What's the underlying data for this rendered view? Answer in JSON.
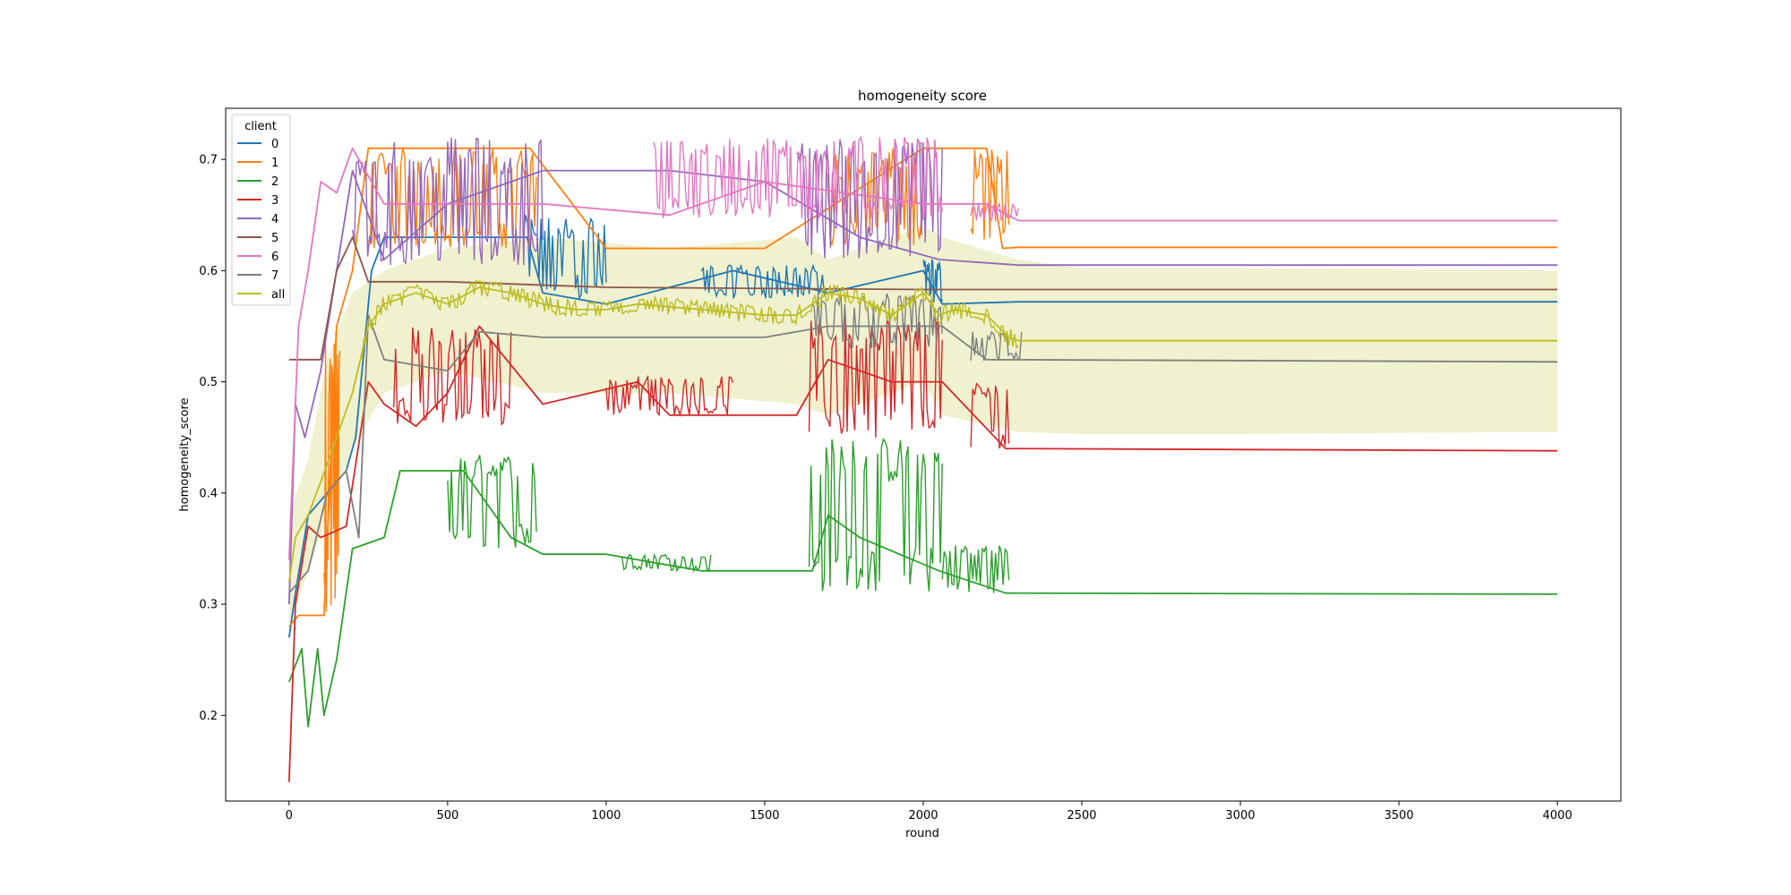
{
  "chart_data": {
    "type": "line",
    "title": "homogeneity score",
    "xlabel": "round",
    "ylabel": "homogeneity_score",
    "xlim": [
      -200,
      4200
    ],
    "ylim": [
      0.123,
      0.746
    ],
    "xticks": [
      0,
      500,
      1000,
      1500,
      2000,
      2500,
      3000,
      3500,
      4000
    ],
    "yticks": [
      0.2,
      0.3,
      0.4,
      0.5,
      0.6,
      0.7
    ],
    "legend": {
      "title": "client",
      "placement": "top-left"
    },
    "band": {
      "series": "all",
      "points": [
        [
          0,
          0.28,
          0.38
        ],
        [
          60,
          0.33,
          0.43
        ],
        [
          120,
          0.38,
          0.52
        ],
        [
          200,
          0.44,
          0.58
        ],
        [
          300,
          0.49,
          0.6
        ],
        [
          500,
          0.51,
          0.62
        ],
        [
          800,
          0.49,
          0.63
        ],
        [
          1200,
          0.49,
          0.62
        ],
        [
          1600,
          0.48,
          0.63
        ],
        [
          1700,
          0.47,
          0.61
        ],
        [
          2000,
          0.5,
          0.64
        ],
        [
          2060,
          0.47,
          0.63
        ],
        [
          2300,
          0.455,
          0.61
        ],
        [
          2500,
          0.453,
          0.602
        ],
        [
          3000,
          0.453,
          0.602
        ],
        [
          4000,
          0.455,
          0.6
        ]
      ]
    },
    "series": [
      {
        "name": "0",
        "color": "#1f77b4",
        "points": [
          [
            0,
            0.27
          ],
          [
            20,
            0.31
          ],
          [
            60,
            0.38
          ],
          [
            120,
            0.4
          ],
          [
            180,
            0.42
          ],
          [
            210,
            0.45
          ],
          [
            260,
            0.6
          ],
          [
            300,
            0.63
          ],
          [
            500,
            0.63
          ],
          [
            750,
            0.63
          ],
          [
            800,
            0.58
          ],
          [
            1000,
            0.57
          ],
          [
            1400,
            0.6
          ],
          [
            1700,
            0.58
          ],
          [
            2000,
            0.6
          ],
          [
            2060,
            0.57
          ],
          [
            2300,
            0.572
          ],
          [
            4000,
            0.572
          ]
        ],
        "bands": [
          [
            740,
            1000,
            0.575,
            0.65
          ],
          [
            1300,
            1700,
            0.575,
            0.605
          ],
          [
            2000,
            2060,
            0.57,
            0.61
          ]
        ]
      },
      {
        "name": "1",
        "color": "#ff7f0e",
        "points": [
          [
            0,
            0.28
          ],
          [
            30,
            0.29
          ],
          [
            60,
            0.29
          ],
          [
            110,
            0.29
          ],
          [
            150,
            0.55
          ],
          [
            200,
            0.6
          ],
          [
            250,
            0.71
          ],
          [
            500,
            0.71
          ],
          [
            760,
            0.71
          ],
          [
            1000,
            0.62
          ],
          [
            1500,
            0.62
          ],
          [
            2000,
            0.71
          ],
          [
            2200,
            0.71
          ],
          [
            2250,
            0.62
          ],
          [
            2300,
            0.621
          ],
          [
            4000,
            0.621
          ]
        ],
        "bands": [
          [
            110,
            160,
            0.29,
            0.55
          ],
          [
            250,
            780,
            0.62,
            0.71
          ],
          [
            1700,
            2000,
            0.62,
            0.71
          ],
          [
            2150,
            2270,
            0.62,
            0.71
          ]
        ]
      },
      {
        "name": "2",
        "color": "#2ca02c",
        "points": [
          [
            0,
            0.23
          ],
          [
            40,
            0.26
          ],
          [
            60,
            0.19
          ],
          [
            90,
            0.26
          ],
          [
            110,
            0.2
          ],
          [
            150,
            0.25
          ],
          [
            200,
            0.35
          ],
          [
            300,
            0.36
          ],
          [
            350,
            0.42
          ],
          [
            550,
            0.42
          ],
          [
            700,
            0.36
          ],
          [
            800,
            0.345
          ],
          [
            1000,
            0.345
          ],
          [
            1300,
            0.33
          ],
          [
            1650,
            0.33
          ],
          [
            1700,
            0.38
          ],
          [
            1800,
            0.36
          ],
          [
            2050,
            0.33
          ],
          [
            2260,
            0.31
          ],
          [
            4000,
            0.309
          ]
        ],
        "bands": [
          [
            500,
            780,
            0.35,
            0.435
          ],
          [
            1050,
            1330,
            0.33,
            0.345
          ],
          [
            1640,
            2060,
            0.31,
            0.45
          ],
          [
            2060,
            2270,
            0.31,
            0.355
          ]
        ]
      },
      {
        "name": "3",
        "color": "#d62728",
        "points": [
          [
            0,
            0.14
          ],
          [
            20,
            0.3
          ],
          [
            60,
            0.37
          ],
          [
            100,
            0.36
          ],
          [
            180,
            0.37
          ],
          [
            250,
            0.5
          ],
          [
            300,
            0.48
          ],
          [
            400,
            0.46
          ],
          [
            500,
            0.49
          ],
          [
            600,
            0.55
          ],
          [
            800,
            0.48
          ],
          [
            1100,
            0.5
          ],
          [
            1200,
            0.47
          ],
          [
            1600,
            0.47
          ],
          [
            1700,
            0.52
          ],
          [
            1900,
            0.5
          ],
          [
            2060,
            0.5
          ],
          [
            2260,
            0.44
          ],
          [
            4000,
            0.438
          ]
        ],
        "bands": [
          [
            330,
            700,
            0.46,
            0.55
          ],
          [
            1000,
            1400,
            0.47,
            0.505
          ],
          [
            1640,
            2060,
            0.45,
            0.56
          ],
          [
            2150,
            2270,
            0.44,
            0.5
          ]
        ]
      },
      {
        "name": "4",
        "color": "#9467bd",
        "points": [
          [
            0,
            0.3
          ],
          [
            20,
            0.48
          ],
          [
            50,
            0.45
          ],
          [
            100,
            0.51
          ],
          [
            150,
            0.6
          ],
          [
            200,
            0.69
          ],
          [
            300,
            0.61
          ],
          [
            500,
            0.66
          ],
          [
            800,
            0.69
          ],
          [
            1200,
            0.69
          ],
          [
            1500,
            0.68
          ],
          [
            1800,
            0.63
          ],
          [
            2050,
            0.61
          ],
          [
            2300,
            0.605
          ],
          [
            4000,
            0.605
          ]
        ],
        "bands": [
          [
            200,
            800,
            0.605,
            0.72
          ],
          [
            1600,
            2060,
            0.61,
            0.72
          ]
        ]
      },
      {
        "name": "5",
        "color": "#8c564b",
        "points": [
          [
            0,
            0.52
          ],
          [
            100,
            0.52
          ],
          [
            150,
            0.6
          ],
          [
            200,
            0.63
          ],
          [
            250,
            0.59
          ],
          [
            500,
            0.59
          ],
          [
            1000,
            0.585
          ],
          [
            2000,
            0.583
          ],
          [
            4000,
            0.583
          ]
        ]
      },
      {
        "name": "6",
        "color": "#e377c2",
        "points": [
          [
            0,
            0.34
          ],
          [
            30,
            0.55
          ],
          [
            60,
            0.6
          ],
          [
            100,
            0.68
          ],
          [
            150,
            0.67
          ],
          [
            200,
            0.71
          ],
          [
            300,
            0.66
          ],
          [
            800,
            0.66
          ],
          [
            1200,
            0.65
          ],
          [
            1500,
            0.68
          ],
          [
            2000,
            0.66
          ],
          [
            2200,
            0.66
          ],
          [
            2300,
            0.645
          ],
          [
            4000,
            0.645
          ]
        ],
        "bands": [
          [
            1150,
            2060,
            0.645,
            0.72
          ],
          [
            2150,
            2300,
            0.645,
            0.66
          ]
        ]
      },
      {
        "name": "7",
        "color": "#7f7f7f",
        "points": [
          [
            0,
            0.31
          ],
          [
            60,
            0.33
          ],
          [
            120,
            0.4
          ],
          [
            180,
            0.42
          ],
          [
            220,
            0.36
          ],
          [
            250,
            0.56
          ],
          [
            300,
            0.52
          ],
          [
            500,
            0.51
          ],
          [
            600,
            0.545
          ],
          [
            800,
            0.54
          ],
          [
            1500,
            0.54
          ],
          [
            1700,
            0.55
          ],
          [
            2060,
            0.55
          ],
          [
            2200,
            0.52
          ],
          [
            4000,
            0.518
          ]
        ],
        "bands": [
          [
            1650,
            2060,
            0.53,
            0.58
          ],
          [
            2150,
            2310,
            0.518,
            0.545
          ]
        ]
      },
      {
        "name": "all",
        "color": "#bcbd22",
        "points": [
          [
            0,
            0.32
          ],
          [
            20,
            0.36
          ],
          [
            60,
            0.38
          ],
          [
            100,
            0.41
          ],
          [
            150,
            0.45
          ],
          [
            200,
            0.49
          ],
          [
            250,
            0.55
          ],
          [
            300,
            0.57
          ],
          [
            400,
            0.58
          ],
          [
            500,
            0.57
          ],
          [
            600,
            0.585
          ],
          [
            700,
            0.58
          ],
          [
            800,
            0.57
          ],
          [
            900,
            0.565
          ],
          [
            1000,
            0.565
          ],
          [
            1100,
            0.57
          ],
          [
            1300,
            0.565
          ],
          [
            1500,
            0.56
          ],
          [
            1600,
            0.56
          ],
          [
            1700,
            0.58
          ],
          [
            1800,
            0.575
          ],
          [
            1900,
            0.56
          ],
          [
            2000,
            0.58
          ],
          [
            2050,
            0.56
          ],
          [
            2100,
            0.565
          ],
          [
            2200,
            0.56
          ],
          [
            2270,
            0.54
          ],
          [
            2300,
            0.537
          ],
          [
            4000,
            0.537
          ]
        ],
        "bands": [
          [
            230,
            2300,
            -0.008,
            0.008
          ]
        ]
      }
    ]
  }
}
